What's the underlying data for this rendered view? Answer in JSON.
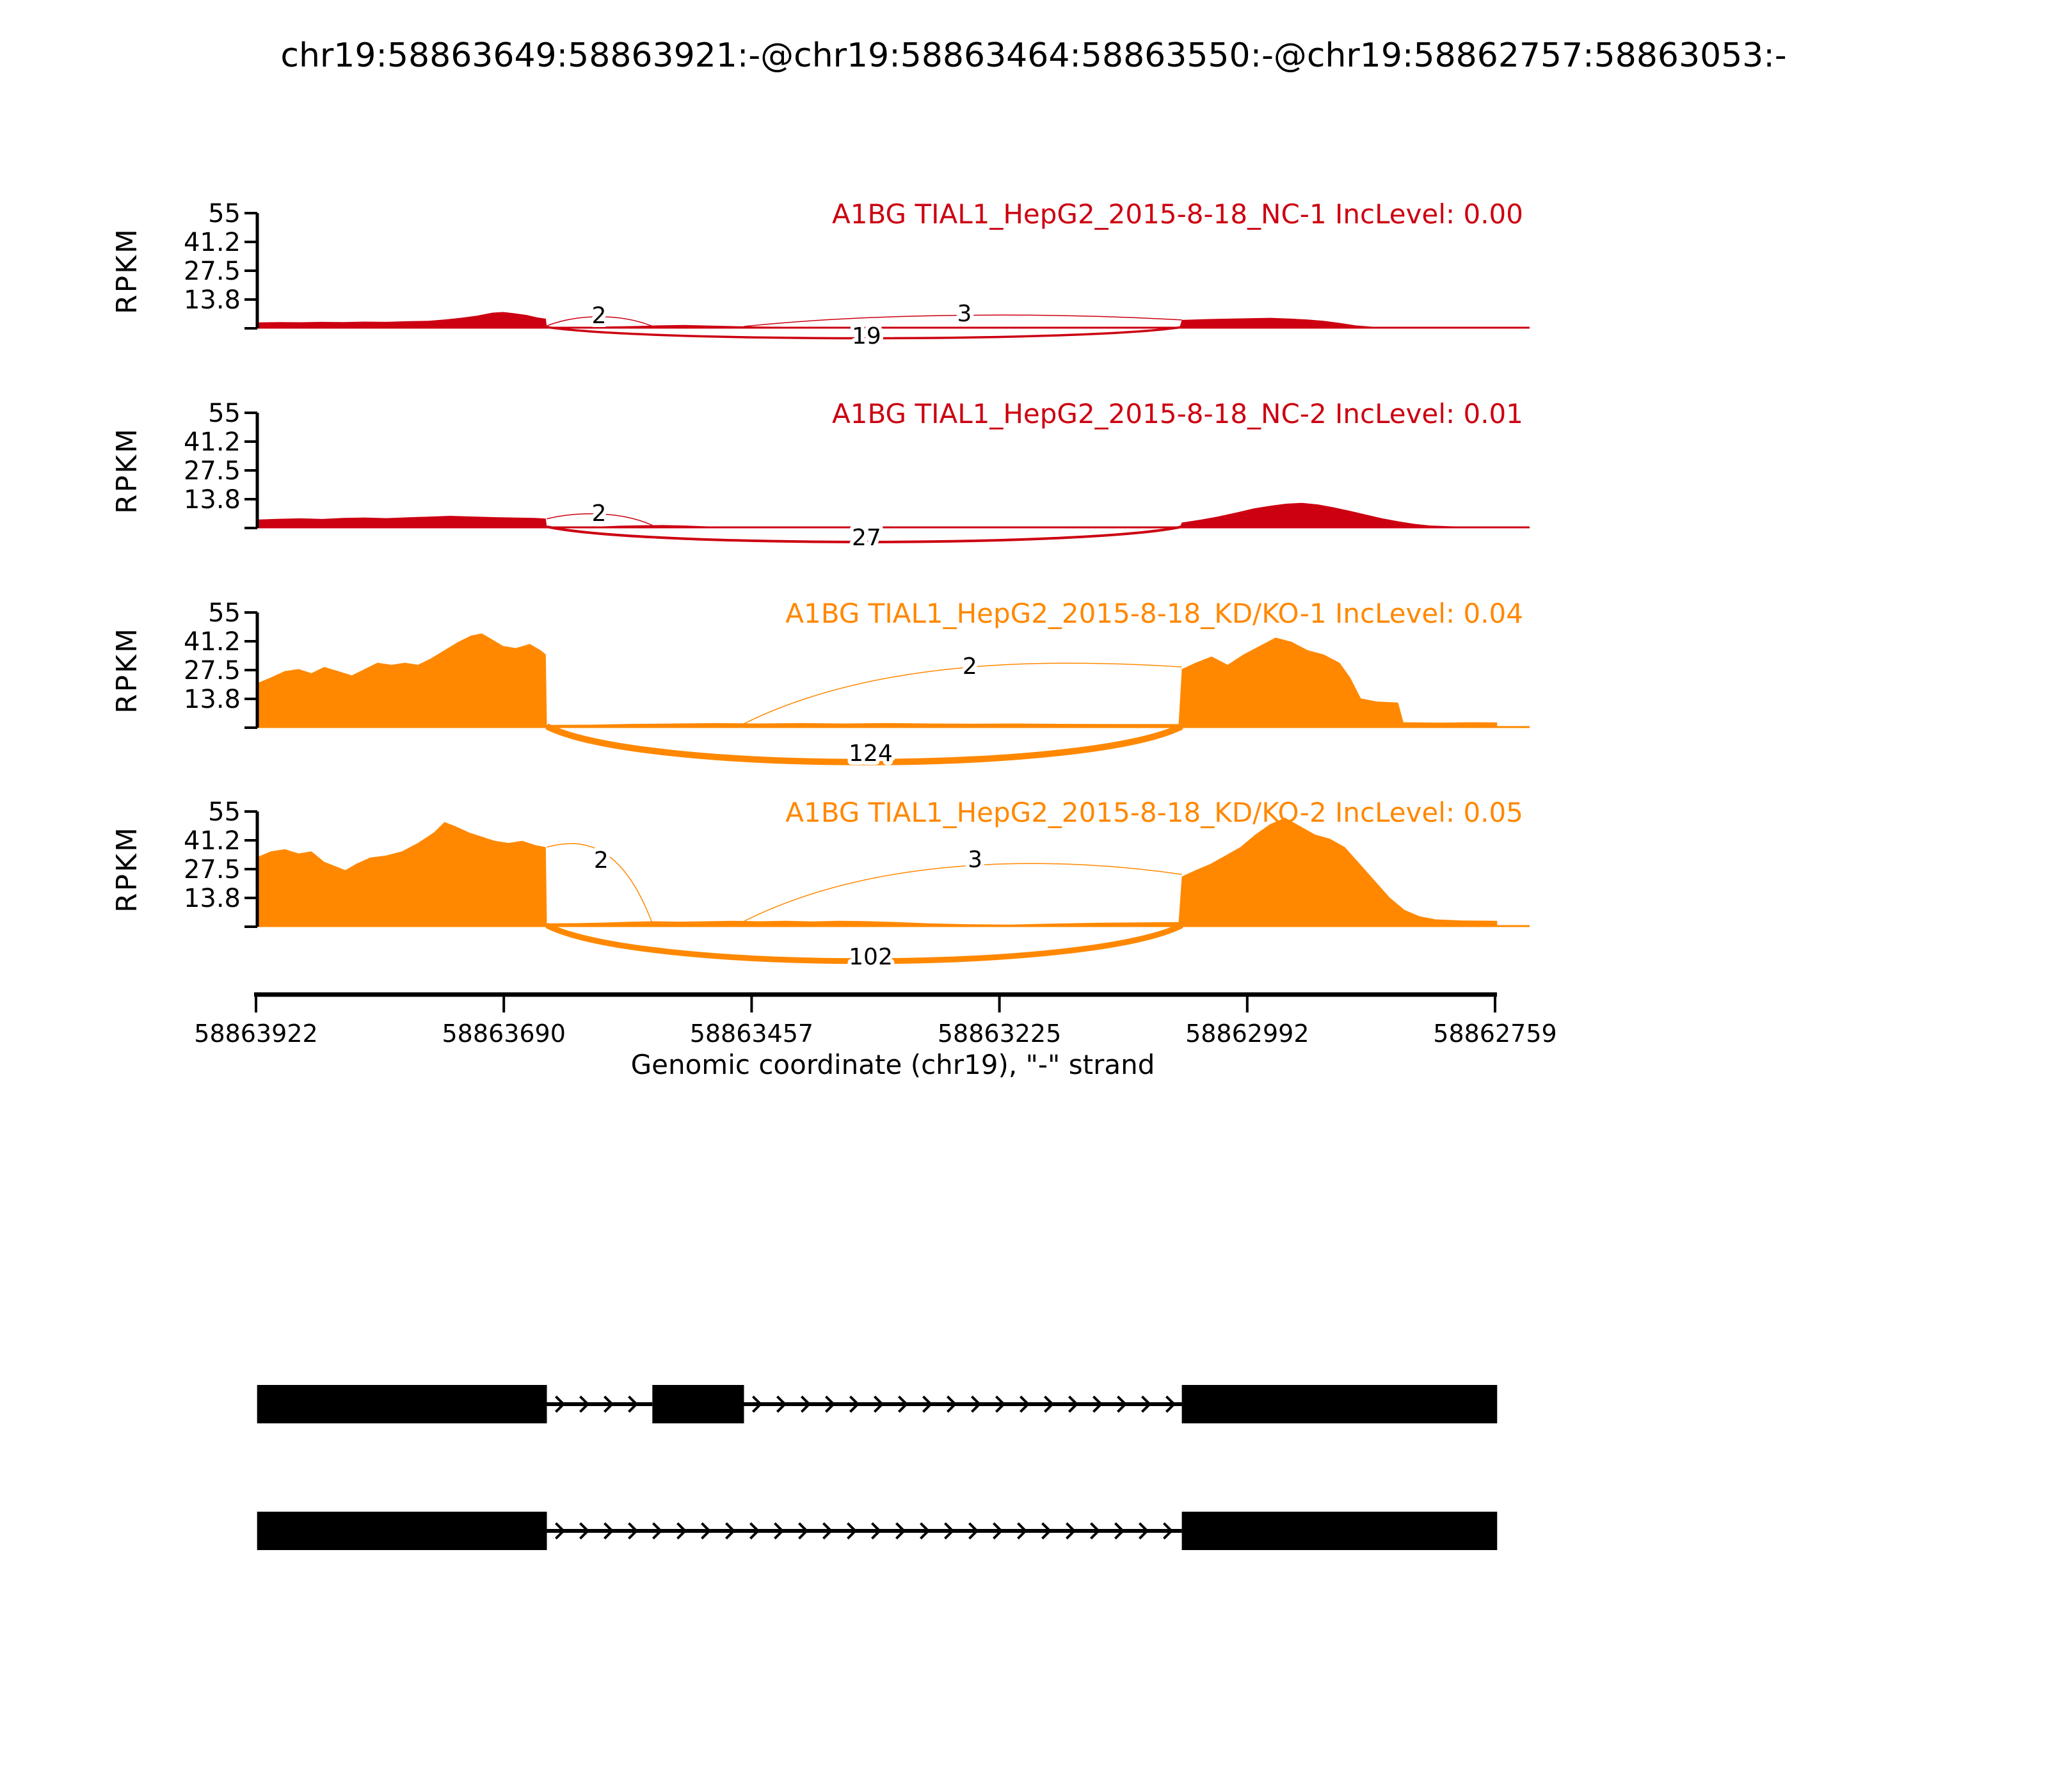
{
  "title": "chr19:58863649:58863921:-@chr19:58863464:58863550:-@chr19:58862757:58863053:-",
  "x_axis": {
    "label": "Genomic coordinate (chr19), \"-\" strand",
    "ticks": [
      "58863922",
      "58863690",
      "58863457",
      "58863225",
      "58862992",
      "58862759"
    ]
  },
  "y_axis": {
    "label": "RPKM",
    "ticks": [
      "55",
      "41.2",
      "27.5",
      "13.8"
    ]
  },
  "chart_data": {
    "type": "area",
    "subtype": "sashimi-plot",
    "x_range": [
      58863922,
      58862759
    ],
    "ylim": [
      0,
      55
    ],
    "colors": {
      "nc_group": "#CC0011",
      "kdko_group": "#FF8800",
      "isoform": "#000000"
    },
    "tracks": [
      {
        "name": "A1BG TIAL1_HepG2_2015-8-18_NC-1",
        "inc_text": "IncLevel: 0.00",
        "color": "#CC0011",
        "coverage": [
          [
            58863922,
            2.8
          ],
          [
            58863900,
            3.0
          ],
          [
            58863880,
            2.9
          ],
          [
            58863860,
            3.1
          ],
          [
            58863840,
            3.0
          ],
          [
            58863820,
            3.2
          ],
          [
            58863800,
            3.1
          ],
          [
            58863780,
            3.4
          ],
          [
            58863760,
            3.6
          ],
          [
            58863745,
            4.2
          ],
          [
            58863730,
            5.0
          ],
          [
            58863715,
            6.0
          ],
          [
            58863700,
            7.5
          ],
          [
            58863690,
            7.8
          ],
          [
            58863680,
            7.2
          ],
          [
            58863668,
            6.4
          ],
          [
            58863658,
            5.2
          ],
          [
            58863650,
            4.6
          ],
          [
            58863649,
            0.7
          ],
          [
            58863620,
            0.7
          ],
          [
            58863590,
            0.9
          ],
          [
            58863565,
            1.1
          ],
          [
            58863545,
            1.4
          ],
          [
            58863520,
            1.6
          ],
          [
            58863495,
            1.3
          ],
          [
            58863470,
            1.0
          ],
          [
            58863440,
            0.8
          ],
          [
            58863400,
            0.7
          ],
          [
            58863350,
            0.6
          ],
          [
            58863300,
            0.6
          ],
          [
            58863250,
            0.5
          ],
          [
            58863180,
            0.5
          ],
          [
            58863100,
            0.4
          ],
          [
            58863055,
            0.5
          ],
          [
            58863053,
            4.0
          ],
          [
            58863030,
            4.4
          ],
          [
            58863010,
            4.6
          ],
          [
            58862990,
            4.8
          ],
          [
            58862970,
            5.0
          ],
          [
            58862950,
            4.6
          ],
          [
            58862935,
            4.2
          ],
          [
            58862920,
            3.6
          ],
          [
            58862905,
            2.6
          ],
          [
            58862890,
            1.4
          ],
          [
            58862875,
            0.8
          ],
          [
            58862860,
            0.5
          ],
          [
            58862820,
            0.4
          ],
          [
            58862759,
            0.3
          ],
          [
            58862727,
            0.3
          ]
        ],
        "junctions": [
          {
            "from": 58863649,
            "to": 58863550,
            "count": 2,
            "from_v": 1.2,
            "to_v": 1.0,
            "apex_v": 7,
            "lw": 1.5,
            "label_c": 58863600,
            "label_dy": -8
          },
          {
            "from": 58863649,
            "to": 58863053,
            "count": 19,
            "from_v": 0,
            "to_v": 0,
            "apex_v": -5,
            "lw": 3.5,
            "label_c": 58863349,
            "label_dy": 24
          },
          {
            "from": 58863464,
            "to": 58863053,
            "count": 3,
            "from_v": 0.9,
            "to_v": 4.0,
            "apex_v": 7.5,
            "lw": 1.5,
            "label_c": 58863257,
            "label_dy": -11
          }
        ]
      },
      {
        "name": "A1BG TIAL1_HepG2_2015-8-18_NC-2",
        "inc_text": "IncLevel: 0.01",
        "color": "#CC0011",
        "coverage": [
          [
            58863922,
            4.0
          ],
          [
            58863900,
            4.4
          ],
          [
            58863880,
            4.6
          ],
          [
            58863860,
            4.3
          ],
          [
            58863840,
            4.8
          ],
          [
            58863820,
            5.0
          ],
          [
            58863800,
            4.7
          ],
          [
            58863780,
            5.1
          ],
          [
            58863760,
            5.4
          ],
          [
            58863740,
            5.8
          ],
          [
            58863720,
            5.5
          ],
          [
            58863700,
            5.2
          ],
          [
            58863680,
            5.0
          ],
          [
            58863660,
            4.8
          ],
          [
            58863650,
            4.5
          ],
          [
            58863649,
            0.5
          ],
          [
            58863620,
            0.5
          ],
          [
            58863600,
            0.7
          ],
          [
            58863580,
            1.1
          ],
          [
            58863560,
            1.3
          ],
          [
            58863540,
            1.4
          ],
          [
            58863520,
            1.2
          ],
          [
            58863500,
            0.8
          ],
          [
            58863470,
            0.5
          ],
          [
            58863430,
            0.4
          ],
          [
            58863380,
            0.3
          ],
          [
            58863300,
            0.3
          ],
          [
            58863200,
            0.3
          ],
          [
            58863100,
            0.3
          ],
          [
            58863055,
            0.4
          ],
          [
            58863053,
            2.6
          ],
          [
            58863035,
            4.0
          ],
          [
            58863018,
            5.6
          ],
          [
            58863000,
            7.6
          ],
          [
            58862985,
            9.4
          ],
          [
            58862970,
            10.6
          ],
          [
            58862955,
            11.6
          ],
          [
            58862940,
            12.0
          ],
          [
            58862925,
            11.2
          ],
          [
            58862910,
            9.8
          ],
          [
            58862895,
            8.2
          ],
          [
            58862880,
            6.4
          ],
          [
            58862865,
            4.6
          ],
          [
            58862850,
            3.2
          ],
          [
            58862835,
            2.0
          ],
          [
            58862820,
            1.2
          ],
          [
            58862800,
            0.8
          ],
          [
            58862759,
            0.6
          ],
          [
            58862727,
            0.5
          ]
        ],
        "junctions": [
          {
            "from": 58863649,
            "to": 58863550,
            "count": 2,
            "from_v": 4.4,
            "to_v": 1.3,
            "apex_v": 8,
            "lw": 1.5,
            "label_c": 58863600,
            "label_dy": -11
          },
          {
            "from": 58863649,
            "to": 58863053,
            "count": 27,
            "from_v": 0,
            "to_v": 0,
            "apex_v": -7,
            "lw": 4,
            "label_c": 58863349,
            "label_dy": 27
          }
        ]
      },
      {
        "name": "A1BG TIAL1_HepG2_2015-8-18_KD/KO-1",
        "inc_text": "IncLevel: 0.04",
        "color": "#FF8800",
        "coverage": [
          [
            58863922,
            21
          ],
          [
            58863908,
            24
          ],
          [
            58863895,
            27
          ],
          [
            58863882,
            28
          ],
          [
            58863870,
            26
          ],
          [
            58863858,
            29
          ],
          [
            58863845,
            27
          ],
          [
            58863832,
            25
          ],
          [
            58863820,
            28
          ],
          [
            58863808,
            31
          ],
          [
            58863795,
            30
          ],
          [
            58863782,
            31
          ],
          [
            58863770,
            30
          ],
          [
            58863758,
            33
          ],
          [
            58863745,
            37
          ],
          [
            58863732,
            41
          ],
          [
            58863720,
            44
          ],
          [
            58863710,
            45
          ],
          [
            58863700,
            42
          ],
          [
            58863690,
            39
          ],
          [
            58863678,
            38
          ],
          [
            58863665,
            40
          ],
          [
            58863655,
            37
          ],
          [
            58863650,
            35
          ],
          [
            58863649,
            1.3
          ],
          [
            58863610,
            1.4
          ],
          [
            58863570,
            1.8
          ],
          [
            58863530,
            2.0
          ],
          [
            58863490,
            2.2
          ],
          [
            58863450,
            2.0
          ],
          [
            58863410,
            2.2
          ],
          [
            58863370,
            2.0
          ],
          [
            58863330,
            2.2
          ],
          [
            58863290,
            2.0
          ],
          [
            58863250,
            1.9
          ],
          [
            58863210,
            2.0
          ],
          [
            58863160,
            1.8
          ],
          [
            58863110,
            1.7
          ],
          [
            58863056,
            1.7
          ],
          [
            58863053,
            28
          ],
          [
            58863040,
            31
          ],
          [
            58863025,
            34
          ],
          [
            58863010,
            30
          ],
          [
            58862995,
            35
          ],
          [
            58862980,
            39
          ],
          [
            58862965,
            43
          ],
          [
            58862950,
            41
          ],
          [
            58862935,
            37
          ],
          [
            58862920,
            35
          ],
          [
            58862905,
            31
          ],
          [
            58862895,
            24
          ],
          [
            58862885,
            14
          ],
          [
            58862870,
            12.5
          ],
          [
            58862850,
            12
          ],
          [
            58862845,
            2.6
          ],
          [
            58862810,
            2.4
          ],
          [
            58862780,
            2.6
          ],
          [
            58862757,
            2.5
          ]
        ],
        "junctions": [
          {
            "from": 58863464,
            "to": 58863053,
            "count": 2,
            "from_v": 1.9,
            "to_v": 29,
            "apex_v": 33,
            "lw": 1.5,
            "label_c": 58863252,
            "label_dy": -84
          },
          {
            "from": 58863649,
            "to": 58863053,
            "count": 124,
            "from_v": 0,
            "to_v": 0,
            "apex_v": -17,
            "lw": 10,
            "label_c": 58863345,
            "label_dy": 52
          }
        ]
      },
      {
        "name": "A1BG TIAL1_HepG2_2015-8-18_KD/KO-2",
        "inc_text": "IncLevel: 0.05",
        "color": "#FF8800",
        "coverage": [
          [
            58863922,
            33
          ],
          [
            58863908,
            36
          ],
          [
            58863895,
            37
          ],
          [
            58863882,
            35
          ],
          [
            58863870,
            36
          ],
          [
            58863858,
            31
          ],
          [
            58863848,
            29
          ],
          [
            58863838,
            27
          ],
          [
            58863828,
            30
          ],
          [
            58863815,
            33
          ],
          [
            58863800,
            34
          ],
          [
            58863785,
            36
          ],
          [
            58863770,
            40
          ],
          [
            58863755,
            45
          ],
          [
            58863745,
            50
          ],
          [
            58863735,
            48
          ],
          [
            58863722,
            45
          ],
          [
            58863710,
            43
          ],
          [
            58863698,
            41
          ],
          [
            58863685,
            40
          ],
          [
            58863672,
            41
          ],
          [
            58863660,
            39
          ],
          [
            58863650,
            38
          ],
          [
            58863649,
            1.6
          ],
          [
            58863620,
            1.7
          ],
          [
            58863595,
            2.0
          ],
          [
            58863570,
            2.4
          ],
          [
            58863548,
            2.6
          ],
          [
            58863525,
            2.4
          ],
          [
            58863500,
            2.6
          ],
          [
            58863475,
            2.8
          ],
          [
            58863450,
            2.6
          ],
          [
            58863425,
            2.8
          ],
          [
            58863400,
            2.5
          ],
          [
            58863375,
            2.8
          ],
          [
            58863350,
            2.7
          ],
          [
            58863320,
            2.2
          ],
          [
            58863290,
            1.6
          ],
          [
            58863255,
            1.2
          ],
          [
            58863215,
            1.0
          ],
          [
            58863175,
            1.5
          ],
          [
            58863130,
            1.9
          ],
          [
            58863085,
            2.1
          ],
          [
            58863056,
            2.2
          ],
          [
            58863053,
            24
          ],
          [
            58863040,
            27
          ],
          [
            58863026,
            30
          ],
          [
            58863012,
            34
          ],
          [
            58862998,
            38
          ],
          [
            58862984,
            44
          ],
          [
            58862970,
            49
          ],
          [
            58862956,
            52
          ],
          [
            58862942,
            48
          ],
          [
            58862928,
            44
          ],
          [
            58862914,
            42
          ],
          [
            58862900,
            38
          ],
          [
            58862886,
            30
          ],
          [
            58862872,
            22
          ],
          [
            58862858,
            14
          ],
          [
            58862844,
            8
          ],
          [
            58862830,
            5
          ],
          [
            58862815,
            3.5
          ],
          [
            58862790,
            3.0
          ],
          [
            58862757,
            2.8
          ]
        ],
        "junctions": [
          {
            "from": 58863649,
            "to": 58863550,
            "count": 2,
            "from_v": 38,
            "to_v": 1.5,
            "apex_v": 42,
            "lw": 1.5,
            "label_c": 58863598,
            "label_dy": -92
          },
          {
            "from": 58863464,
            "to": 58863053,
            "count": 3,
            "from_v": 2.6,
            "to_v": 25,
            "apex_v": 34,
            "lw": 1.5,
            "label_c": 58863247,
            "label_dy": -93
          },
          {
            "from": 58863649,
            "to": 58863053,
            "count": 102,
            "from_v": 0,
            "to_v": 0,
            "apex_v": -17,
            "lw": 9,
            "label_c": 58863345,
            "label_dy": 59
          }
        ]
      }
    ],
    "isoforms": [
      {
        "exons": [
          [
            58863921,
            58863649
          ],
          [
            58863550,
            58863464
          ],
          [
            58863053,
            58862757
          ]
        ]
      },
      {
        "exons": [
          [
            58863921,
            58863649
          ],
          [
            58863053,
            58862757
          ]
        ]
      }
    ]
  }
}
